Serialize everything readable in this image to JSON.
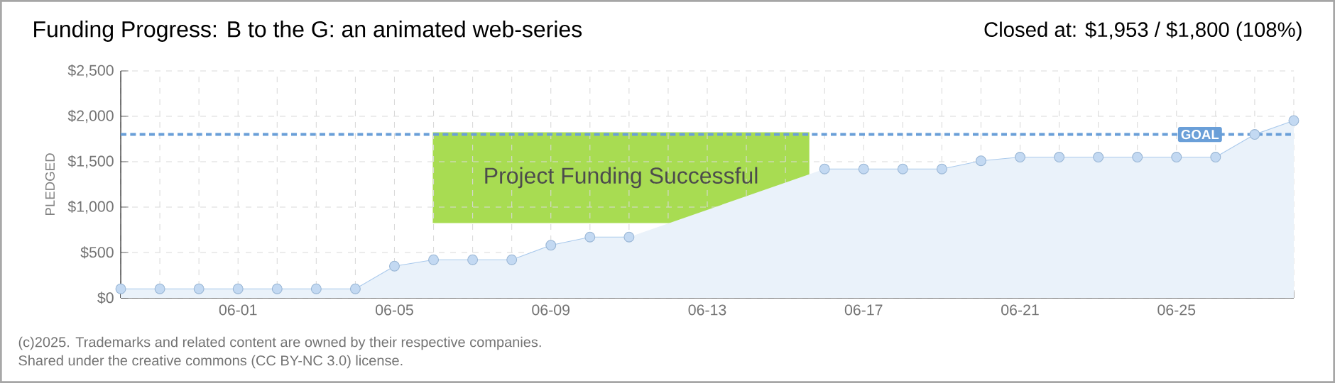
{
  "chart_data": {
    "type": "area",
    "title": "Funding Progress: B to the G: an animated web-series",
    "subtitle": "Closed at: $1,953 / $1,800 (108%)",
    "ylabel": "PLEDGED",
    "categories": [
      null,
      null,
      null,
      "06-01",
      null,
      null,
      null,
      "06-05",
      null,
      null,
      null,
      "06-09",
      null,
      null,
      null,
      "06-13",
      null,
      null,
      null,
      "06-17",
      null,
      null,
      null,
      "06-21",
      null,
      null,
      null,
      "06-25",
      null,
      null,
      null
    ],
    "series": [
      {
        "color": "#a9c9ec",
        "values": [
          100,
          100,
          100,
          100,
          100,
          100,
          100,
          350,
          420,
          420,
          420,
          580,
          670,
          670,
          null,
          null,
          null,
          null,
          1420,
          1420,
          1420,
          1420,
          1510,
          1550,
          1550,
          1550,
          1550,
          1550,
          1550,
          1800,
          1953
        ]
      }
    ],
    "ylim": [
      0,
      2500
    ],
    "yticks": [
      {
        "value": 0,
        "label": "$0"
      },
      {
        "value": 500,
        "label": "$500"
      },
      {
        "value": 1000,
        "label": "$1,000"
      },
      {
        "value": 1500,
        "label": "$1,500"
      },
      {
        "value": 2000,
        "label": "$2,000"
      },
      {
        "value": 2500,
        "label": "$2,500"
      }
    ],
    "grid": true,
    "marker": "circle",
    "ref_lines": [
      {
        "axis": "y",
        "value": 1800,
        "label": "GOAL",
        "color": "#6a9fd8",
        "line_style": "dashed"
      }
    ],
    "annotations": [
      "Project Funding Successful",
      "(c)2025. Trademarks and related content are owned by their respective companies.",
      "Shared under the creative commons (CC BY-NC 3.0) license."
    ]
  }
}
